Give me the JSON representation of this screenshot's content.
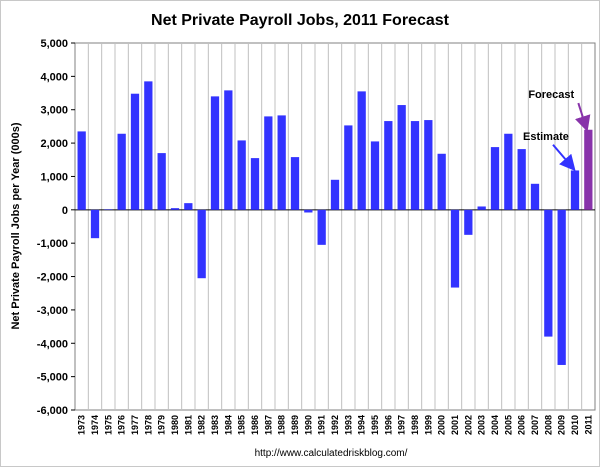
{
  "chart_data": {
    "type": "bar",
    "title": "Net Private Payroll Jobs, 2011 Forecast",
    "ylabel": "Net Private Payroll Jobs per Year (000s)",
    "xlabel": "",
    "ylim": [
      -6000,
      5000
    ],
    "yticks": [
      5000,
      4000,
      3000,
      2000,
      1000,
      0,
      -1000,
      -2000,
      -3000,
      -4000,
      -5000,
      -6000
    ],
    "ytick_labels": [
      "5,000",
      "4,000",
      "3,000",
      "2,000",
      "1,000",
      "0",
      "-1,000",
      "-2,000",
      "-3,000",
      "-4,000",
      "-5,000",
      "-6,000"
    ],
    "grid": {
      "vertical": true,
      "horizontal": false
    },
    "categories": [
      "1973",
      "1974",
      "1975",
      "1976",
      "1977",
      "1978",
      "1979",
      "1980",
      "1981",
      "1982",
      "1983",
      "1984",
      "1985",
      "1986",
      "1987",
      "1988",
      "1989",
      "1990",
      "1991",
      "1992",
      "1993",
      "1994",
      "1995",
      "1996",
      "1997",
      "1998",
      "1999",
      "2000",
      "2001",
      "2002",
      "2003",
      "2004",
      "2005",
      "2006",
      "2007",
      "2008",
      "2009",
      "2010",
      "2011"
    ],
    "values": [
      2350,
      -850,
      0,
      2280,
      3480,
      3850,
      1700,
      50,
      200,
      -2050,
      3400,
      3580,
      2080,
      1550,
      2800,
      2830,
      1580,
      -80,
      -1050,
      900,
      2530,
      3550,
      2050,
      2660,
      3140,
      2660,
      2690,
      1680,
      -2330,
      -750,
      100,
      1880,
      2280,
      1820,
      780,
      -3800,
      -4650,
      1180,
      2400
    ],
    "colors": {
      "bar": "#3333ff",
      "forecast_bar": "#8833aa",
      "plot_bg": "#ffffff",
      "grid": "#c0c0c0"
    },
    "annotations": [
      {
        "text": "Forecast",
        "category": "2011",
        "value": 3350,
        "arrow_to_value": 2450,
        "color": "#8833aa"
      },
      {
        "text": "Estimate",
        "category": "2010",
        "value": 2100,
        "arrow_to_value": 1250,
        "color": "#3333ff"
      }
    ]
  },
  "footer": {
    "source": "http://www.calculatedriskblog.com/"
  }
}
